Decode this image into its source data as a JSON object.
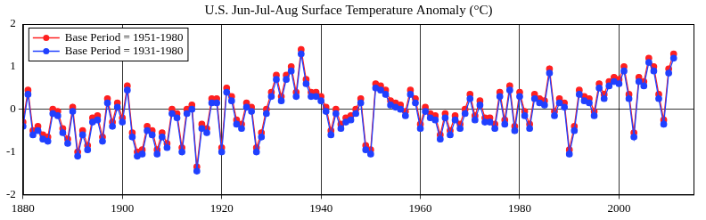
{
  "chart_data": {
    "type": "line",
    "title": "U.S. Jun-Jul-Aug Surface Temperature Anomaly (°C)",
    "x": [
      1880,
      1881,
      1882,
      1883,
      1884,
      1885,
      1886,
      1887,
      1888,
      1889,
      1890,
      1891,
      1892,
      1893,
      1894,
      1895,
      1896,
      1897,
      1898,
      1899,
      1900,
      1901,
      1902,
      1903,
      1904,
      1905,
      1906,
      1907,
      1908,
      1909,
      1910,
      1911,
      1912,
      1913,
      1914,
      1915,
      1916,
      1917,
      1918,
      1919,
      1920,
      1921,
      1922,
      1923,
      1924,
      1925,
      1926,
      1927,
      1928,
      1929,
      1930,
      1931,
      1932,
      1933,
      1934,
      1935,
      1936,
      1937,
      1938,
      1939,
      1940,
      1941,
      1942,
      1943,
      1944,
      1945,
      1946,
      1947,
      1948,
      1949,
      1950,
      1951,
      1952,
      1953,
      1954,
      1955,
      1956,
      1957,
      1958,
      1959,
      1960,
      1961,
      1962,
      1963,
      1964,
      1965,
      1966,
      1967,
      1968,
      1969,
      1970,
      1971,
      1972,
      1973,
      1974,
      1975,
      1976,
      1977,
      1978,
      1979,
      1980,
      1981,
      1982,
      1983,
      1984,
      1985,
      1986,
      1987,
      1988,
      1989,
      1990,
      1991,
      1992,
      1993,
      1994,
      1995,
      1996,
      1997,
      1998,
      1999,
      2000,
      2001,
      2002,
      2003,
      2004,
      2005,
      2006,
      2007,
      2008,
      2009,
      2010,
      2011
    ],
    "series": [
      {
        "name": "Base Period = 1951-1980",
        "color": "#ff2020",
        "marker": "circle",
        "line_style": "solid",
        "values": [
          -0.3,
          0.45,
          -0.5,
          -0.4,
          -0.6,
          -0.65,
          0.0,
          -0.05,
          -0.45,
          -0.7,
          0.05,
          -1.0,
          -0.5,
          -0.85,
          -0.2,
          -0.15,
          -0.65,
          0.25,
          -0.3,
          0.15,
          -0.2,
          0.55,
          -0.55,
          -1.0,
          -0.95,
          -0.4,
          -0.5,
          -0.95,
          -0.55,
          -0.8,
          0.0,
          -0.1,
          -0.9,
          0.0,
          0.1,
          -1.35,
          -0.35,
          -0.45,
          0.25,
          0.25,
          -0.9,
          0.5,
          0.3,
          -0.25,
          -0.35,
          0.15,
          0.05,
          -0.9,
          -0.55,
          0.0,
          0.4,
          0.8,
          0.3,
          0.8,
          1.0,
          0.4,
          1.4,
          0.7,
          0.4,
          0.4,
          0.3,
          0.05,
          -0.5,
          0.0,
          -0.35,
          -0.2,
          -0.15,
          0.0,
          0.25,
          -0.85,
          -0.95,
          0.6,
          0.55,
          0.45,
          0.2,
          0.15,
          0.1,
          -0.05,
          0.45,
          0.25,
          -0.35,
          0.05,
          -0.1,
          -0.15,
          -0.6,
          -0.1,
          -0.5,
          -0.15,
          -0.35,
          0.0,
          0.35,
          -0.15,
          0.2,
          -0.2,
          -0.2,
          -0.35,
          0.4,
          -0.25,
          0.55,
          -0.4,
          0.4,
          -0.05,
          -0.35,
          0.35,
          0.25,
          0.2,
          0.95,
          -0.05,
          0.25,
          0.15,
          -0.95,
          -0.4,
          0.45,
          0.3,
          0.25,
          -0.05,
          0.6,
          0.35,
          0.65,
          0.75,
          0.7,
          1.0,
          0.35,
          -0.55,
          0.75,
          0.65,
          1.2,
          1.0,
          0.35,
          -0.25,
          0.95,
          1.3
        ]
      },
      {
        "name": "Base Period = 1931-1980",
        "color": "#2040ff",
        "marker": "circle",
        "line_style": "solid",
        "values": [
          -0.4,
          0.35,
          -0.6,
          -0.5,
          -0.7,
          -0.75,
          -0.1,
          -0.15,
          -0.55,
          -0.8,
          -0.05,
          -1.1,
          -0.6,
          -0.95,
          -0.3,
          -0.25,
          -0.75,
          0.15,
          -0.4,
          0.05,
          -0.3,
          0.45,
          -0.65,
          -1.1,
          -1.05,
          -0.5,
          -0.6,
          -1.05,
          -0.65,
          -0.9,
          -0.1,
          -0.2,
          -1.0,
          -0.1,
          0.0,
          -1.45,
          -0.45,
          -0.55,
          0.15,
          0.15,
          -1.0,
          0.4,
          0.2,
          -0.35,
          -0.45,
          0.05,
          -0.05,
          -1.0,
          -0.65,
          -0.1,
          0.3,
          0.7,
          0.2,
          0.7,
          0.9,
          0.3,
          1.3,
          0.6,
          0.3,
          0.3,
          0.2,
          -0.05,
          -0.6,
          -0.1,
          -0.45,
          -0.3,
          -0.25,
          -0.1,
          0.15,
          -0.95,
          -1.05,
          0.5,
          0.45,
          0.35,
          0.1,
          0.05,
          0.0,
          -0.15,
          0.35,
          0.15,
          -0.45,
          -0.05,
          -0.2,
          -0.25,
          -0.7,
          -0.2,
          -0.6,
          -0.25,
          -0.45,
          -0.1,
          0.25,
          -0.25,
          0.1,
          -0.3,
          -0.3,
          -0.45,
          0.3,
          -0.35,
          0.45,
          -0.5,
          0.3,
          -0.15,
          -0.45,
          0.25,
          0.15,
          0.1,
          0.85,
          -0.15,
          0.15,
          0.05,
          -1.05,
          -0.5,
          0.35,
          0.2,
          0.15,
          -0.15,
          0.5,
          0.25,
          0.55,
          0.65,
          0.6,
          0.9,
          0.25,
          -0.65,
          0.65,
          0.55,
          1.1,
          0.9,
          0.25,
          -0.35,
          0.85,
          1.2
        ]
      }
    ],
    "xlim": [
      1880,
      2015
    ],
    "xticks": [
      1880,
      1900,
      1920,
      1940,
      1960,
      1980,
      2000
    ],
    "ylim": [
      -2,
      2
    ],
    "yticks": [
      -2,
      -1,
      0,
      1,
      2
    ],
    "grid": true,
    "legend": "upper left"
  }
}
